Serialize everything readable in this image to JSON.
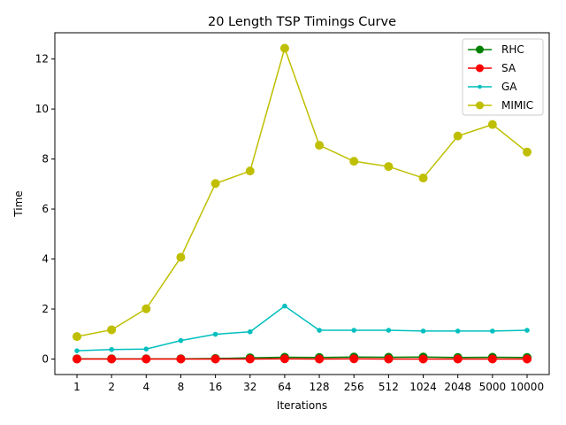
{
  "chart_data": {
    "type": "line",
    "title": "20 Length TSP Timings Curve",
    "xlabel": "Iterations",
    "ylabel": "Time",
    "categories": [
      "1",
      "2",
      "4",
      "8",
      "16",
      "32",
      "64",
      "128",
      "256",
      "512",
      "1024",
      "2048",
      "5000",
      "10000"
    ],
    "ylim": [
      -0.62,
      13.05
    ],
    "yticks": [
      0,
      2,
      4,
      6,
      8,
      10,
      12
    ],
    "grid": false,
    "legend_position": "upper-right",
    "series": [
      {
        "name": "RHC",
        "color": "#008000",
        "marker": "large-circle",
        "values": [
          0.01,
          0.01,
          0.01,
          0.01,
          0.02,
          0.05,
          0.07,
          0.06,
          0.08,
          0.07,
          0.08,
          0.06,
          0.07,
          0.06
        ]
      },
      {
        "name": "SA",
        "color": "#ff0000",
        "marker": "large-circle",
        "values": [
          0.0,
          0.0,
          0.0,
          0.0,
          0.0,
          0.0,
          0.01,
          0.0,
          0.01,
          0.0,
          0.0,
          0.0,
          0.0,
          0.0
        ]
      },
      {
        "name": "GA",
        "color": "#00bfbf",
        "marker": "small-dot",
        "values": [
          0.33,
          0.38,
          0.4,
          0.74,
          0.99,
          1.09,
          2.12,
          1.15,
          1.15,
          1.15,
          1.12,
          1.12,
          1.12,
          1.15
        ]
      },
      {
        "name": "MIMIC",
        "color": "#bfbf00",
        "marker": "large-circle",
        "values": [
          0.9,
          1.17,
          2.01,
          4.07,
          7.02,
          7.52,
          12.43,
          8.55,
          7.91,
          7.7,
          7.24,
          8.92,
          9.38,
          8.28
        ]
      }
    ]
  }
}
